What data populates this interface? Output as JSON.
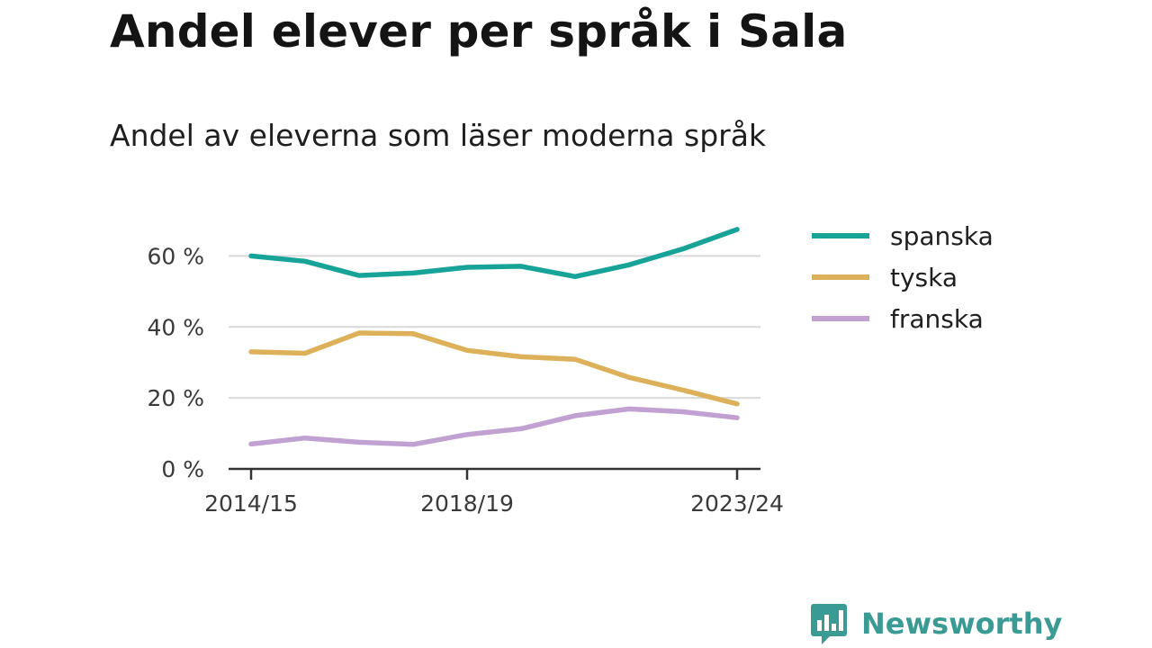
{
  "header": {
    "title": "Andel elever per språk i Sala",
    "subtitle": "Andel av eleverna som läser moderna språk"
  },
  "brand": {
    "name": "Newsworthy",
    "icon": "bar-chart-speech-bubble-icon",
    "color": "#3a9b94"
  },
  "chart_data": {
    "type": "line",
    "title": "Andel elever per språk i Sala",
    "subtitle": "Andel av eleverna som läser moderna språk",
    "x": [
      "2014/15",
      "2015/16",
      "2016/17",
      "2017/18",
      "2018/19",
      "2019/20",
      "2020/21",
      "2021/22",
      "2022/23",
      "2023/24"
    ],
    "x_tick_labels": [
      "2014/15",
      "2018/19",
      "2023/24"
    ],
    "y_ticks": [
      0,
      20,
      40,
      60
    ],
    "y_tick_labels": [
      "0 %",
      "20 %",
      "40 %",
      "60 %"
    ],
    "ylim": [
      0,
      70
    ],
    "unit": "%",
    "grid": true,
    "legend_position": "right",
    "series": [
      {
        "name": "spanska",
        "color": "#17a398",
        "values": [
          60,
          58.5,
          54.5,
          55.2,
          56.8,
          57.1,
          54.2,
          57.5,
          62,
          67.5
        ]
      },
      {
        "name": "tyska",
        "color": "#ddb05a",
        "values": [
          33,
          32.6,
          38.3,
          38.1,
          33.4,
          31.6,
          30.9,
          25.8,
          22.2,
          18.3
        ]
      },
      {
        "name": "franska",
        "color": "#c1a0d2",
        "values": [
          7,
          8.7,
          7.5,
          6.9,
          9.7,
          11.3,
          15,
          16.9,
          16.1,
          14.4
        ]
      }
    ]
  }
}
